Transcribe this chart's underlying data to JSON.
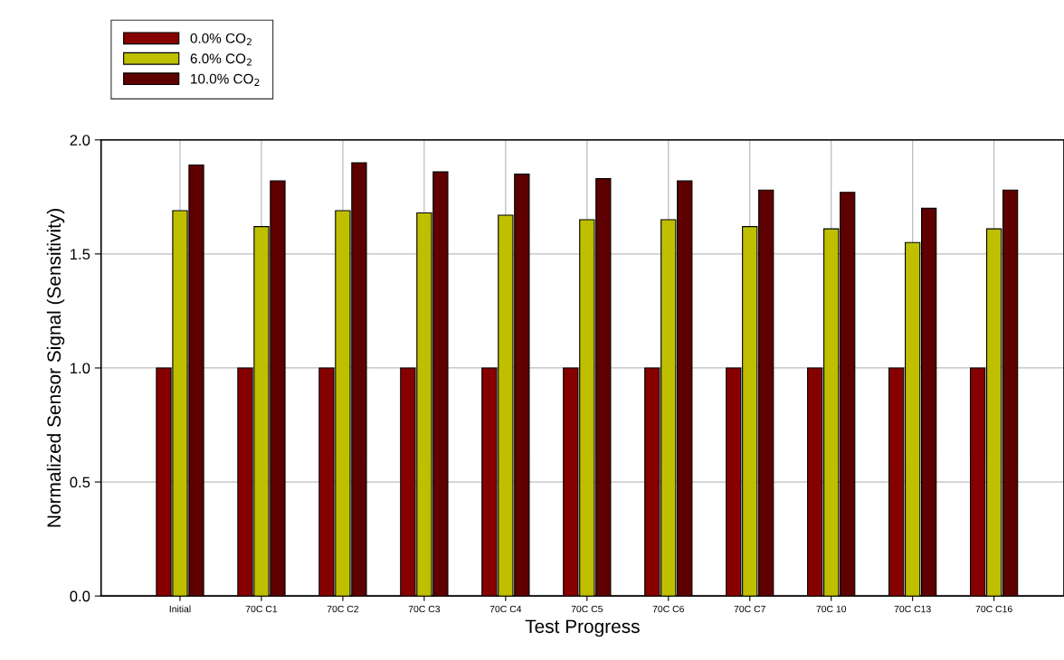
{
  "chart_data": {
    "type": "bar",
    "xlabel": "Test Progress",
    "ylabel": "Normalized Sensor Signal (Sensitivity)",
    "categories": [
      "Initial",
      "70C C1",
      "70C C2",
      "70C C3",
      "70C C4",
      "70C C5",
      "70C C6",
      "70C C7",
      "70C 10",
      "70C C13",
      "70C C16"
    ],
    "series": [
      {
        "name": "0.0% CO$_{2}$",
        "color": "#870000",
        "values": [
          1.0,
          1.0,
          1.0,
          1.0,
          1.0,
          1.0,
          1.0,
          1.0,
          1.0,
          1.0,
          1.0
        ]
      },
      {
        "name": "6.0% CO$_{2}$",
        "color": "#bfbf00",
        "values": [
          1.69,
          1.62,
          1.69,
          1.68,
          1.67,
          1.65,
          1.65,
          1.62,
          1.61,
          1.55,
          1.61
        ]
      },
      {
        "name": "10.0% CO$_{2}$",
        "color": "#5e0000",
        "values": [
          1.89,
          1.82,
          1.9,
          1.86,
          1.85,
          1.83,
          1.82,
          1.78,
          1.77,
          1.7,
          1.78
        ]
      }
    ],
    "ylim": [
      0,
      2.0
    ],
    "yticks": [
      {
        "value": 0,
        "label": "0.0"
      },
      {
        "value": 0.5,
        "label": "0.5"
      },
      {
        "value": 1.0,
        "label": "1.0"
      },
      {
        "value": 1.5,
        "label": "1.5"
      },
      {
        "value": 2.0,
        "label": "2.0"
      }
    ],
    "grid": true,
    "legend": "top left"
  }
}
